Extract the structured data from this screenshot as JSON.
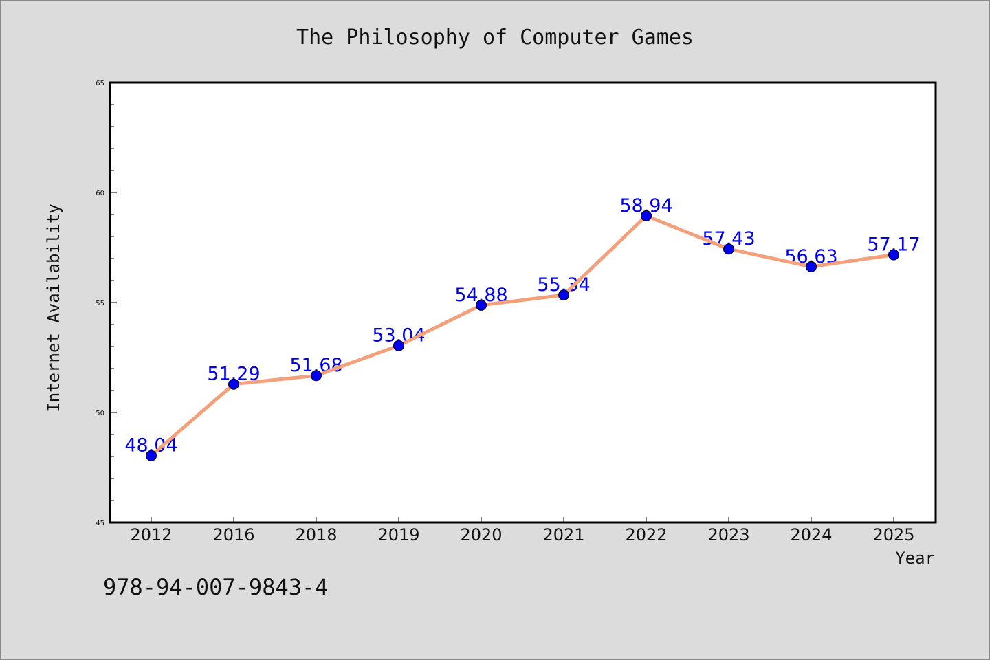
{
  "chart_data": {
    "type": "line",
    "title": "The Philosophy of Computer Games",
    "xlabel": "Year",
    "ylabel": "Internet Availability",
    "categories": [
      "2012",
      "2016",
      "2018",
      "2019",
      "2020",
      "2021",
      "2022",
      "2023",
      "2024",
      "2025"
    ],
    "series": [
      {
        "values": [
          48.04,
          51.29,
          51.68,
          53.04,
          54.88,
          55.34,
          58.94,
          57.43,
          56.63,
          57.17
        ],
        "labels": [
          "48.04",
          "51.29",
          "51.68",
          "53.04",
          "54.88",
          "55.34",
          "58.94",
          "57.43",
          "56.63",
          "57.17"
        ],
        "line_color": "#f4a07a",
        "marker_color": "#0000ee"
      }
    ],
    "ylim": [
      45,
      65
    ],
    "yticks": [
      "45",
      "50",
      "55",
      "60",
      "65"
    ],
    "grid": false,
    "legend": "none"
  },
  "footer": {
    "code": "978-94-007-9843-4"
  },
  "colors": {
    "background": "#dcdcdc",
    "plot_background": "#ffffff",
    "line": "#f4a07a",
    "marker": "#0000ee",
    "data_label": "#0000ee"
  }
}
